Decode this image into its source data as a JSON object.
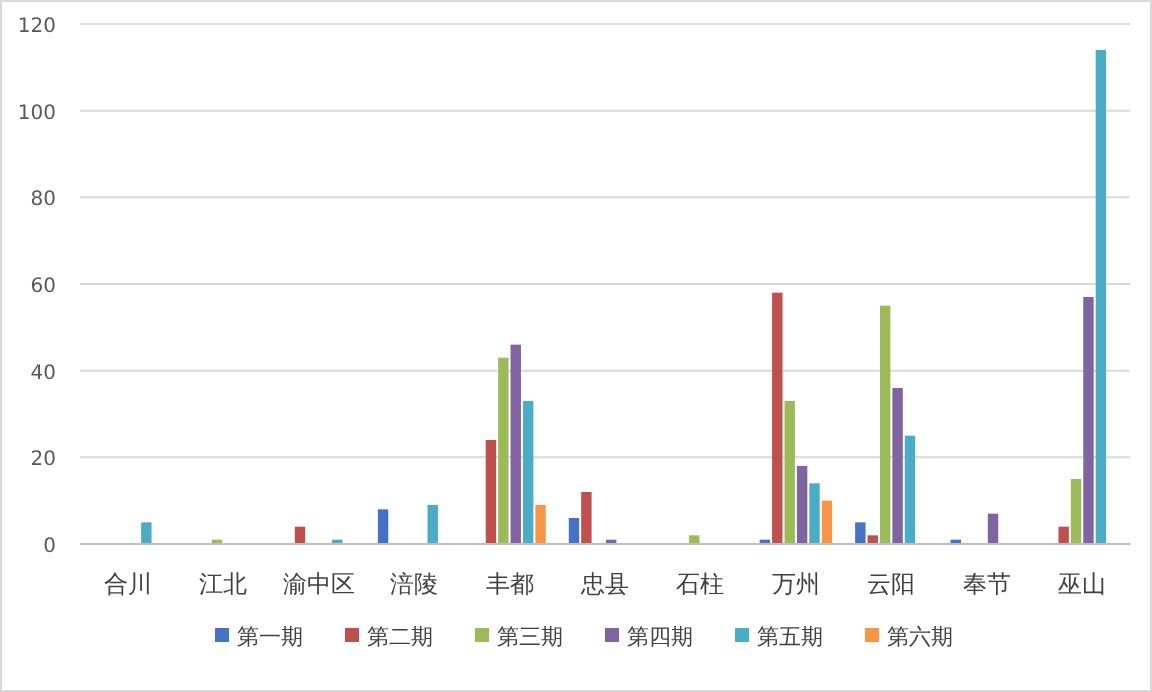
{
  "chart_data": {
    "type": "bar",
    "categories": [
      "合川",
      "江北",
      "渝中区",
      "涪陵",
      "丰都",
      "忠县",
      "石柱",
      "万州",
      "云阳",
      "奉节",
      "巫山"
    ],
    "series": [
      {
        "name": "第一期",
        "color": "#4472c4",
        "values": [
          null,
          null,
          null,
          8,
          null,
          6,
          null,
          1,
          5,
          1,
          null
        ]
      },
      {
        "name": "第二期",
        "color": "#c0504d",
        "values": [
          null,
          null,
          4,
          null,
          24,
          12,
          null,
          58,
          2,
          null,
          4
        ]
      },
      {
        "name": "第三期",
        "color": "#9bbb59",
        "values": [
          null,
          1,
          null,
          null,
          43,
          null,
          2,
          33,
          55,
          null,
          15
        ]
      },
      {
        "name": "第四期",
        "color": "#8064a2",
        "values": [
          null,
          null,
          null,
          null,
          46,
          1,
          null,
          18,
          36,
          7,
          57
        ]
      },
      {
        "name": "第五期",
        "color": "#4bacc6",
        "values": [
          5,
          null,
          1,
          9,
          33,
          null,
          null,
          14,
          25,
          null,
          114
        ]
      },
      {
        "name": "第六期",
        "color": "#f79646",
        "values": [
          null,
          null,
          null,
          null,
          9,
          null,
          null,
          10,
          null,
          null,
          null
        ]
      }
    ],
    "ylim": [
      0,
      120
    ],
    "yticks": [
      0,
      20,
      40,
      60,
      80,
      100,
      120
    ],
    "grid": "y",
    "legend": "bottom"
  }
}
